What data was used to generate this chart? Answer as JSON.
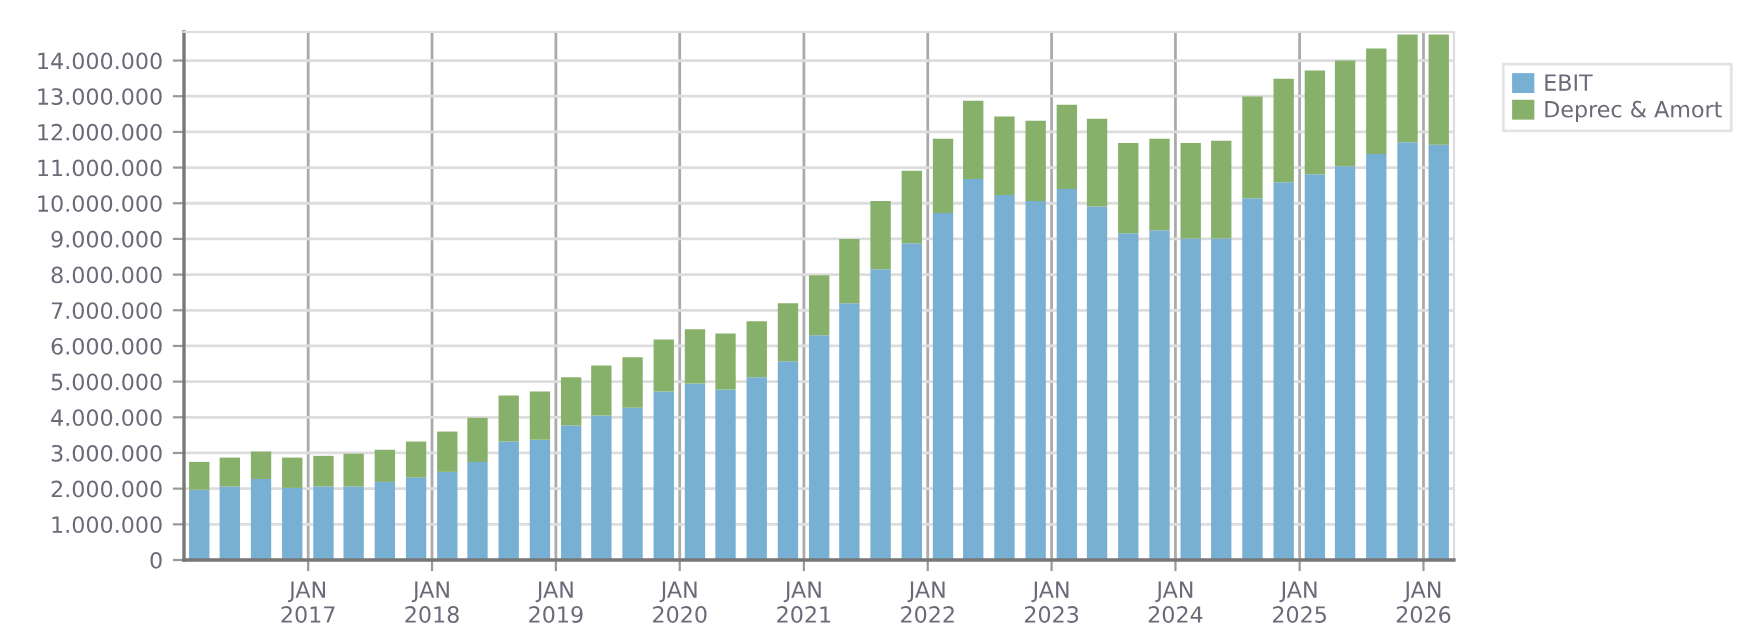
{
  "chart_data": {
    "type": "bar",
    "stacked": true,
    "x": [
      "2016-02-15",
      "2016-05-15",
      "2016-08-15",
      "2016-11-15",
      "2017-02-15",
      "2017-05-15",
      "2017-08-15",
      "2017-11-15",
      "2018-02-15",
      "2018-05-15",
      "2018-08-15",
      "2018-11-15",
      "2019-02-15",
      "2019-05-15",
      "2019-08-15",
      "2019-11-15",
      "2020-02-15",
      "2020-05-15",
      "2020-08-15",
      "2020-11-15",
      "2021-02-15",
      "2021-05-15",
      "2021-08-15",
      "2021-11-15",
      "2022-02-15",
      "2022-05-15",
      "2022-08-15",
      "2022-11-15",
      "2023-02-15",
      "2023-05-15",
      "2023-08-15",
      "2023-11-15",
      "2024-02-15",
      "2024-05-15",
      "2024-08-15",
      "2024-11-15",
      "2025-02-15",
      "2025-05-15",
      "2025-08-15",
      "2025-11-15",
      "2026-02-15"
    ],
    "series": [
      {
        "name": "EBIT",
        "color": "#78b0d3",
        "values": [
          1970000,
          2060000,
          2270000,
          2020000,
          2060000,
          2060000,
          2190000,
          2310000,
          2470000,
          2750000,
          3320000,
          3370000,
          3770000,
          4050000,
          4270000,
          4720000,
          4950000,
          4780000,
          5120000,
          5570000,
          6300000,
          7200000,
          8150000,
          8880000,
          9730000,
          10680000,
          10230000,
          10060000,
          10400000,
          9910000,
          9160000,
          9240000,
          9010000,
          9010000,
          10140000,
          10590000,
          10810000,
          11040000,
          11380000,
          11710000,
          11640000
        ]
      },
      {
        "name": "Deprec & Amort",
        "color": "#87b06a",
        "values": [
          780000,
          810000,
          770000,
          850000,
          860000,
          920000,
          900000,
          1010000,
          1130000,
          1240000,
          1290000,
          1350000,
          1350000,
          1400000,
          1410000,
          1460000,
          1520000,
          1570000,
          1570000,
          1630000,
          1680000,
          1800000,
          1910000,
          2030000,
          2080000,
          2190000,
          2200000,
          2250000,
          2360000,
          2460000,
          2530000,
          2570000,
          2680000,
          2740000,
          2850000,
          2900000,
          2910000,
          2960000,
          2960000,
          3020000,
          3090000
        ]
      }
    ],
    "xlim": [
      "2016-01-01",
      "2026-04-01"
    ],
    "xticks": [
      {
        "value": "2017-01-01",
        "label": "JAN\n2017"
      },
      {
        "value": "2018-01-01",
        "label": "JAN\n2018"
      },
      {
        "value": "2019-01-01",
        "label": "JAN\n2019"
      },
      {
        "value": "2020-01-01",
        "label": "JAN\n2020"
      },
      {
        "value": "2021-01-01",
        "label": "JAN\n2021"
      },
      {
        "value": "2022-01-01",
        "label": "JAN\n2022"
      },
      {
        "value": "2023-01-01",
        "label": "JAN\n2023"
      },
      {
        "value": "2024-01-01",
        "label": "JAN\n2024"
      },
      {
        "value": "2025-01-01",
        "label": "JAN\n2025"
      },
      {
        "value": "2026-01-01",
        "label": "JAN\n2026"
      }
    ],
    "ylim": [
      0,
      14800000
    ],
    "yticks": [
      0,
      {
        "value": 1000000,
        "label": "1.000.000"
      },
      {
        "value": 2000000,
        "label": "2.000.000"
      },
      {
        "value": 3000000,
        "label": "3.000.000"
      },
      {
        "value": 4000000,
        "label": "4.000.000"
      },
      {
        "value": 5000000,
        "label": "5.000.000"
      },
      {
        "value": 6000000,
        "label": "6.000.000"
      },
      {
        "value": 7000000,
        "label": "7.000.000"
      },
      {
        "value": 8000000,
        "label": "8.000.000"
      },
      {
        "value": 9000000,
        "label": "9.000.000"
      },
      {
        "value": 10000000,
        "label": "10.000.000"
      },
      {
        "value": 11000000,
        "label": "11.000.000"
      },
      {
        "value": 12000000,
        "label": "12.000.000"
      },
      {
        "value": 13000000,
        "label": "13.000.000"
      },
      {
        "value": 14000000,
        "label": "14.000.000"
      }
    ],
    "grid": true,
    "legend": "top right"
  }
}
